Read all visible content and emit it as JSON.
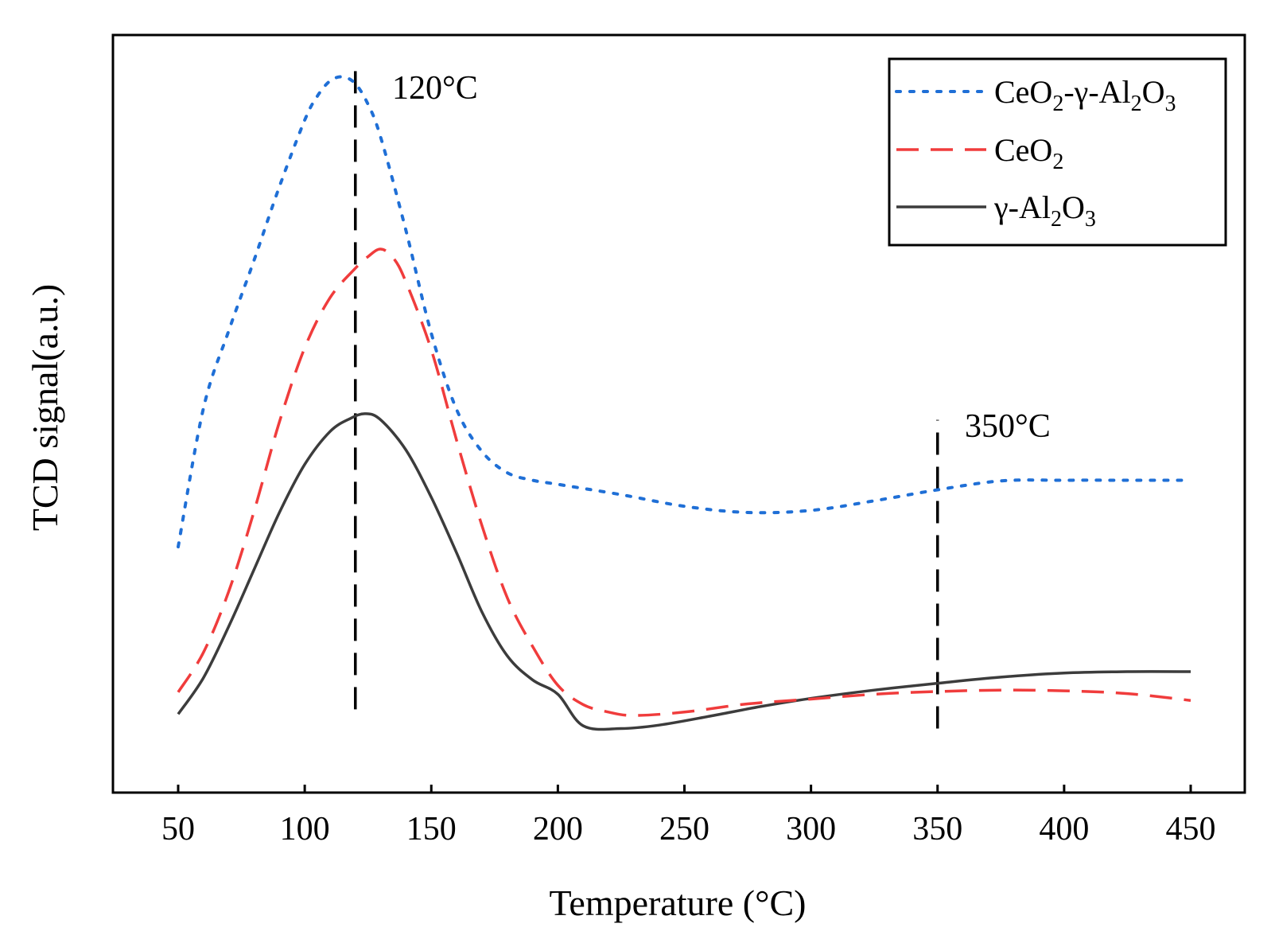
{
  "chart_data": {
    "type": "line",
    "title": "",
    "xlabel": "Temperature (°C)",
    "ylabel": "TCD signal(a.u.)",
    "xlim": [
      25,
      475
    ],
    "ylim": [
      0,
      100
    ],
    "xticks": [
      50,
      100,
      150,
      200,
      250,
      300,
      350,
      400,
      450
    ],
    "grid": false,
    "legend_position": "top-right",
    "annotations": [
      {
        "text": "120°C",
        "x": 120
      },
      {
        "text": "350°C",
        "x": 350
      }
    ],
    "series": [
      {
        "name": "CeO2-γ-Al2O3",
        "legend_parts": [
          [
            "CeO",
            ""
          ],
          [
            "2",
            "sub"
          ],
          [
            "-γ-Al",
            ""
          ],
          [
            "2",
            "sub"
          ],
          [
            "O",
            ""
          ],
          [
            "3",
            "sub"
          ]
        ],
        "color": "#1f6fd6",
        "style": "dotted",
        "x": [
          50,
          60,
          70,
          80,
          90,
          100,
          105,
          110,
          115,
          120,
          125,
          130,
          140,
          150,
          160,
          170,
          180,
          190,
          200,
          225,
          250,
          275,
          300,
          325,
          350,
          375,
          400,
          425,
          450
        ],
        "y": [
          30.5,
          50.7,
          62.0,
          72.3,
          83.0,
          92.7,
          96.2,
          98.4,
          99.0,
          98.0,
          95.0,
          90.2,
          76.6,
          61.6,
          50.5,
          44.4,
          41.3,
          40.2,
          39.6,
          38.1,
          36.4,
          35.5,
          35.8,
          37.2,
          38.8,
          40.1,
          40.2,
          40.2,
          40.2
        ]
      },
      {
        "name": "CeO2",
        "legend_parts": [
          [
            "CeO",
            ""
          ],
          [
            "2",
            "sub"
          ]
        ],
        "color": "#f03c3c",
        "style": "dashed",
        "x": [
          50,
          60,
          70,
          80,
          90,
          100,
          110,
          120,
          125,
          130,
          135,
          140,
          150,
          160,
          170,
          180,
          190,
          200,
          210,
          220,
          230,
          250,
          275,
          300,
          325,
          350,
          375,
          400,
          425,
          450
        ],
        "y": [
          9.3,
          15.1,
          24.0,
          35.7,
          48.7,
          59.5,
          66.8,
          71.1,
          72.8,
          73.9,
          72.6,
          69.1,
          59.2,
          46.0,
          33.6,
          23.1,
          16.0,
          10.3,
          7.5,
          6.4,
          5.9,
          6.4,
          7.6,
          8.3,
          9.0,
          9.4,
          9.6,
          9.5,
          9.1,
          8.1
        ]
      },
      {
        "name": "γ-Al2O3",
        "legend_parts": [
          [
            "γ-Al",
            ""
          ],
          [
            "2",
            "sub"
          ],
          [
            "O",
            ""
          ],
          [
            "3",
            "sub"
          ]
        ],
        "color": "#3c3c3c",
        "style": "solid",
        "x": [
          50,
          60,
          70,
          80,
          90,
          100,
          110,
          118,
          124,
          130,
          140,
          150,
          160,
          170,
          180,
          190,
          200,
          210,
          225,
          240,
          260,
          280,
          300,
          325,
          350,
          375,
          400,
          425,
          450
        ],
        "y": [
          6.1,
          11.4,
          18.9,
          27.2,
          35.5,
          42.5,
          47.3,
          49.2,
          49.9,
          49.0,
          44.6,
          37.7,
          29.6,
          21.0,
          14.6,
          11.1,
          9.0,
          4.4,
          4.0,
          4.5,
          5.8,
          7.2,
          8.4,
          9.6,
          10.6,
          11.5,
          12.1,
          12.3,
          12.3
        ]
      }
    ],
    "reference_lines": [
      {
        "x": 120,
        "style": "dashed",
        "color": "#000000",
        "y_from": 6.8,
        "y_to": 101.5
      },
      {
        "x": 350,
        "style": "dashed",
        "color": "#000000",
        "y_from": 4.0,
        "y_to": 49.0
      }
    ]
  }
}
